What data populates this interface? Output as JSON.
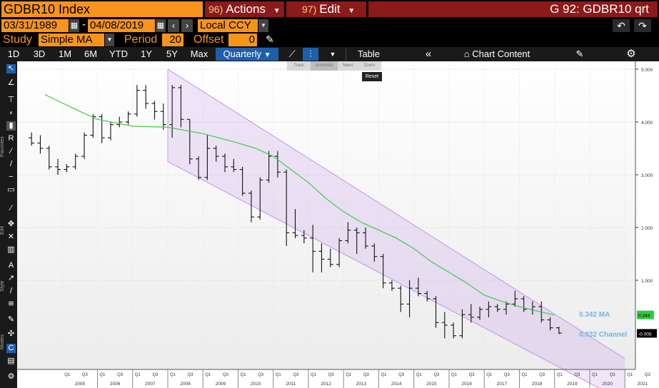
{
  "header": {
    "ticker": "GDBR10 Index",
    "actions_key": "96)",
    "actions_label": "Actions",
    "edit_key": "97)",
    "edit_label": "Edit",
    "screen_id": "G 92: GDBR10 qrt"
  },
  "range": {
    "start_date": "03/31/1989",
    "end_date": "04/08/2019",
    "currency": "Local CCY"
  },
  "study": {
    "study_label": "Study",
    "study_value": "Simple MA",
    "period_label": "Period",
    "period_value": "20",
    "offset_label": "Offset",
    "offset_value": "0"
  },
  "toolbar": {
    "periods": [
      "1D",
      "3D",
      "1M",
      "6M",
      "YTD",
      "1Y",
      "5Y",
      "Max"
    ],
    "frequency": "Quarterly",
    "table_label": "Table",
    "chart_content_label": "Chart Content"
  },
  "tool_panel": {
    "favorites_label": "Favorites",
    "edit_label": "Edit",
    "style_label": "Style",
    "modes_label": "Modes"
  },
  "overlay_buttons": [
    "Track",
    "Annotate",
    "News",
    "Zoom"
  ],
  "reset_label": "Reset",
  "chart_data": {
    "type": "bar",
    "title": "",
    "y_axis_labels": [
      "5.000",
      "4.000",
      "3.000",
      "2.000",
      "1.000"
    ],
    "ylim": [
      -1.3,
      5.05
    ],
    "years": [
      "2005",
      "2006",
      "2007",
      "2008",
      "2009",
      "2010",
      "2011",
      "2012",
      "2013",
      "2014",
      "2015",
      "2016",
      "2017",
      "2018",
      "2019",
      "2020",
      "2021"
    ],
    "quarter_ticks": [
      "Q1",
      "Q3"
    ],
    "last_value": "0.344",
    "last_value_color": "#2ecc40",
    "channel_last_value": "-0.005",
    "ma_annotation": "0.342 MA",
    "channel_annotation": "0.032 Channel",
    "annotation_color": "#6fb7e8",
    "ma_color": "#3fcf3f",
    "channel_color": "#c8a2e8",
    "channel": {
      "upper": [
        [
          2008.0,
          5.0
        ],
        [
          2019.0,
          0.36
        ]
      ],
      "lower": [
        [
          2008.0,
          3.25
        ],
        [
          2021.0,
          -1.3
        ]
      ]
    },
    "ma": [
      [
        2004.5,
        4.52
      ],
      [
        2005.5,
        4.2
      ],
      [
        2006.0,
        4.05
      ],
      [
        2007.0,
        3.92
      ],
      [
        2008.0,
        3.9
      ],
      [
        2009.0,
        3.78
      ],
      [
        2010.0,
        3.6
      ],
      [
        2010.5,
        3.5
      ],
      [
        2011.0,
        3.35
      ],
      [
        2011.5,
        3.1
      ],
      [
        2012.0,
        2.85
      ],
      [
        2012.5,
        2.55
      ],
      [
        2013.0,
        2.3
      ],
      [
        2013.5,
        2.1
      ],
      [
        2014.0,
        1.95
      ],
      [
        2014.5,
        1.8
      ],
      [
        2015.0,
        1.6
      ],
      [
        2015.5,
        1.35
      ],
      [
        2016.0,
        1.15
      ],
      [
        2016.5,
        0.95
      ],
      [
        2017.0,
        0.72
      ],
      [
        2017.5,
        0.6
      ],
      [
        2018.0,
        0.5
      ],
      [
        2018.5,
        0.42
      ],
      [
        2019.0,
        0.34
      ]
    ],
    "ohlc": [
      [
        2004.0,
        3.7,
        3.8,
        3.55,
        3.6
      ],
      [
        2004.25,
        3.6,
        3.75,
        3.4,
        3.5
      ],
      [
        2004.5,
        3.5,
        3.55,
        3.1,
        3.15
      ],
      [
        2004.75,
        3.15,
        3.3,
        3.0,
        3.1
      ],
      [
        2005.0,
        3.1,
        3.2,
        3.05,
        3.15
      ],
      [
        2005.25,
        3.15,
        3.4,
        3.1,
        3.35
      ],
      [
        2005.5,
        3.35,
        3.8,
        3.3,
        3.75
      ],
      [
        2005.75,
        3.75,
        4.15,
        3.7,
        4.1
      ],
      [
        2006.0,
        4.1,
        4.15,
        3.6,
        3.7
      ],
      [
        2006.25,
        3.7,
        4.0,
        3.65,
        3.95
      ],
      [
        2006.5,
        3.95,
        4.1,
        3.9,
        4.0
      ],
      [
        2006.75,
        4.0,
        4.2,
        3.95,
        4.15
      ],
      [
        2007.0,
        4.15,
        4.7,
        4.1,
        4.6
      ],
      [
        2007.25,
        4.6,
        4.7,
        4.25,
        4.35
      ],
      [
        2007.5,
        4.35,
        4.4,
        4.05,
        4.2
      ],
      [
        2007.75,
        4.2,
        4.35,
        3.85,
        3.95
      ],
      [
        2008.0,
        3.95,
        4.7,
        3.7,
        4.65
      ],
      [
        2008.25,
        4.65,
        4.7,
        3.9,
        4.05
      ],
      [
        2008.5,
        4.05,
        4.05,
        3.2,
        3.3
      ],
      [
        2008.75,
        3.3,
        3.35,
        2.9,
        2.95
      ],
      [
        2009.0,
        2.95,
        3.75,
        2.9,
        3.5
      ],
      [
        2009.25,
        3.5,
        3.55,
        3.25,
        3.35
      ],
      [
        2009.5,
        3.35,
        3.4,
        3.05,
        3.15
      ],
      [
        2009.75,
        3.15,
        3.3,
        3.05,
        3.1
      ],
      [
        2010.0,
        3.1,
        3.15,
        2.6,
        2.65
      ],
      [
        2010.25,
        2.65,
        2.7,
        2.1,
        2.2
      ],
      [
        2010.5,
        2.2,
        2.95,
        2.15,
        2.9
      ],
      [
        2010.75,
        2.9,
        3.45,
        2.85,
        3.35
      ],
      [
        2011.0,
        3.35,
        3.45,
        2.95,
        3.05
      ],
      [
        2011.25,
        3.05,
        3.1,
        1.65,
        1.9
      ],
      [
        2011.5,
        1.9,
        2.35,
        1.8,
        1.85
      ],
      [
        2011.75,
        1.85,
        1.95,
        1.7,
        1.8
      ],
      [
        2012.0,
        1.8,
        2.05,
        1.15,
        1.55
      ],
      [
        2012.25,
        1.55,
        1.7,
        1.15,
        1.4
      ],
      [
        2012.5,
        1.4,
        1.6,
        1.25,
        1.3
      ],
      [
        2012.75,
        1.3,
        1.8,
        1.25,
        1.75
      ],
      [
        2013.0,
        1.75,
        2.1,
        1.7,
        1.95
      ],
      [
        2013.25,
        1.95,
        2.0,
        1.5,
        1.9
      ],
      [
        2013.5,
        1.9,
        2.0,
        1.6,
        1.65
      ],
      [
        2013.75,
        1.65,
        1.7,
        1.35,
        1.45
      ],
      [
        2014.0,
        1.45,
        1.5,
        0.85,
        0.95
      ],
      [
        2014.25,
        0.95,
        1.0,
        0.8,
        0.85
      ],
      [
        2014.5,
        0.85,
        0.9,
        0.4,
        0.55
      ],
      [
        2014.75,
        0.55,
        1.0,
        0.3,
        0.85
      ],
      [
        2015.0,
        0.85,
        1.05,
        0.7,
        0.75
      ],
      [
        2015.25,
        0.75,
        0.8,
        0.6,
        0.65
      ],
      [
        2015.5,
        0.65,
        0.7,
        0.1,
        0.2
      ],
      [
        2015.75,
        0.2,
        0.4,
        -0.1,
        0.15
      ],
      [
        2016.0,
        0.15,
        0.2,
        -0.1,
        -0.05
      ],
      [
        2016.25,
        -0.05,
        0.45,
        -0.1,
        0.35
      ],
      [
        2016.5,
        0.35,
        0.55,
        0.2,
        0.3
      ],
      [
        2016.75,
        0.3,
        0.5,
        0.25,
        0.45
      ],
      [
        2017.0,
        0.45,
        0.6,
        0.3,
        0.5
      ],
      [
        2017.25,
        0.5,
        0.55,
        0.4,
        0.45
      ],
      [
        2017.5,
        0.45,
        0.6,
        0.35,
        0.55
      ],
      [
        2017.75,
        0.55,
        0.8,
        0.5,
        0.65
      ],
      [
        2018.0,
        0.65,
        0.7,
        0.4,
        0.45
      ],
      [
        2018.25,
        0.45,
        0.6,
        0.35,
        0.5
      ],
      [
        2018.5,
        0.5,
        0.6,
        0.2,
        0.25
      ],
      [
        2018.75,
        0.25,
        0.3,
        0.05,
        0.1
      ],
      [
        2019.0,
        0.1,
        0.12,
        -0.02,
        0.0
      ]
    ]
  }
}
